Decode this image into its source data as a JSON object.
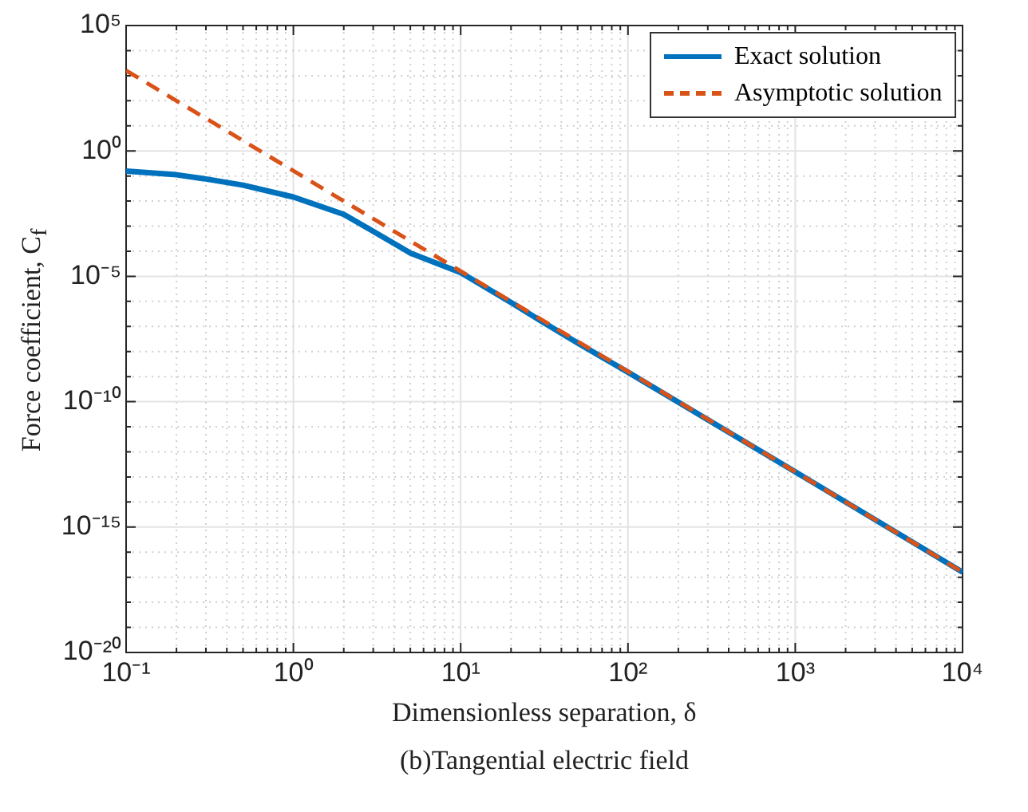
{
  "chart_data": {
    "type": "line",
    "xlabel": "Dimensionless separation, δ",
    "ylabel": "Force coefficient, C$_{f}$",
    "annotations": [
      "(b)Tangential electric field"
    ],
    "log": "xy",
    "grid": true,
    "legend": "top right",
    "marker": "none",
    "xlim": [
      0.1,
      10000
    ],
    "ylim": [
      1e-20,
      100000
    ],
    "xticks": [
      {
        "value": 0.1,
        "label": "10⁻¹"
      },
      {
        "value": 0.2,
        "label": null
      },
      {
        "value": 0.3,
        "label": null
      },
      {
        "value": 0.4,
        "label": null
      },
      {
        "value": 0.5,
        "label": null
      },
      {
        "value": 0.6,
        "label": null
      },
      {
        "value": 0.7,
        "label": null
      },
      {
        "value": 0.8,
        "label": null
      },
      {
        "value": 0.9,
        "label": null
      },
      {
        "value": 1,
        "label": "10⁰"
      },
      {
        "value": 2,
        "label": null
      },
      {
        "value": 3,
        "label": null
      },
      {
        "value": 4,
        "label": null
      },
      {
        "value": 5,
        "label": null
      },
      {
        "value": 6,
        "label": null
      },
      {
        "value": 7,
        "label": null
      },
      {
        "value": 8,
        "label": null
      },
      {
        "value": 9,
        "label": null
      },
      {
        "value": 10,
        "label": "10¹"
      },
      {
        "value": 20,
        "label": null
      },
      {
        "value": 30,
        "label": null
      },
      {
        "value": 40,
        "label": null
      },
      {
        "value": 50,
        "label": null
      },
      {
        "value": 60,
        "label": null
      },
      {
        "value": 70,
        "label": null
      },
      {
        "value": 80,
        "label": null
      },
      {
        "value": 90,
        "label": null
      },
      {
        "value": 100,
        "label": "10²"
      },
      {
        "value": 200,
        "label": null
      },
      {
        "value": 300,
        "label": null
      },
      {
        "value": 400,
        "label": null
      },
      {
        "value": 500,
        "label": null
      },
      {
        "value": 600,
        "label": null
      },
      {
        "value": 700,
        "label": null
      },
      {
        "value": 800,
        "label": null
      },
      {
        "value": 900,
        "label": null
      },
      {
        "value": 1000,
        "label": "10³"
      },
      {
        "value": 2000,
        "label": null
      },
      {
        "value": 3000,
        "label": null
      },
      {
        "value": 4000,
        "label": null
      },
      {
        "value": 5000,
        "label": null
      },
      {
        "value": 6000,
        "label": null
      },
      {
        "value": 7000,
        "label": null
      },
      {
        "value": 8000,
        "label": null
      },
      {
        "value": 9000,
        "label": null
      },
      {
        "value": 10000,
        "label": "10⁴"
      }
    ],
    "yticks": [
      {
        "value": 1e-20,
        "label": "10⁻²⁰"
      },
      {
        "value": 1e-19,
        "label": null
      },
      {
        "value": 1e-18,
        "label": null
      },
      {
        "value": 1e-17,
        "label": null
      },
      {
        "value": 1e-16,
        "label": null
      },
      {
        "value": 1e-15,
        "label": "10⁻¹⁵"
      },
      {
        "value": 1e-14,
        "label": null
      },
      {
        "value": 1e-13,
        "label": null
      },
      {
        "value": 1e-12,
        "label": null
      },
      {
        "value": 1e-11,
        "label": null
      },
      {
        "value": 1e-10,
        "label": "10⁻¹⁰"
      },
      {
        "value": 1e-09,
        "label": null
      },
      {
        "value": 1e-08,
        "label": null
      },
      {
        "value": 1e-07,
        "label": null
      },
      {
        "value": 1e-06,
        "label": null
      },
      {
        "value": 1e-05,
        "label": "10⁻⁵"
      },
      {
        "value": 0.0001,
        "label": null
      },
      {
        "value": 0.001,
        "label": null
      },
      {
        "value": 0.01,
        "label": null
      },
      {
        "value": 0.1,
        "label": null
      },
      {
        "value": 1,
        "label": "10⁰"
      },
      {
        "value": 10,
        "label": null
      },
      {
        "value": 100,
        "label": null
      },
      {
        "value": 1000,
        "label": null
      },
      {
        "value": 10000,
        "label": null
      },
      {
        "value": 100000,
        "label": "10⁵"
      }
    ],
    "series": [
      {
        "name": "Exact solution",
        "color": "#0072bd",
        "line_style": "solid",
        "x": [
          0.1,
          0.2,
          0.3,
          0.5,
          1,
          2,
          3,
          5,
          10,
          20,
          30,
          50,
          100,
          1000,
          10000
        ],
        "values": [
          0.158,
          0.112,
          0.076,
          0.043,
          0.0145,
          0.00295,
          0.00062,
          8.5e-05,
          1.4e-05,
          9e-07,
          1.7e-07,
          2.2e-08,
          1.5e-09,
          1.6e-13,
          1.6e-17
        ]
      },
      {
        "name": "Asymptotic solution",
        "color": "#d95319",
        "line_style": "dashed",
        "x": [
          0.1,
          1,
          10,
          100,
          1000,
          10000
        ],
        "values": [
          1600,
          0.16,
          1.6e-05,
          1.6e-09,
          1.6e-13,
          1.6e-17
        ]
      }
    ]
  }
}
